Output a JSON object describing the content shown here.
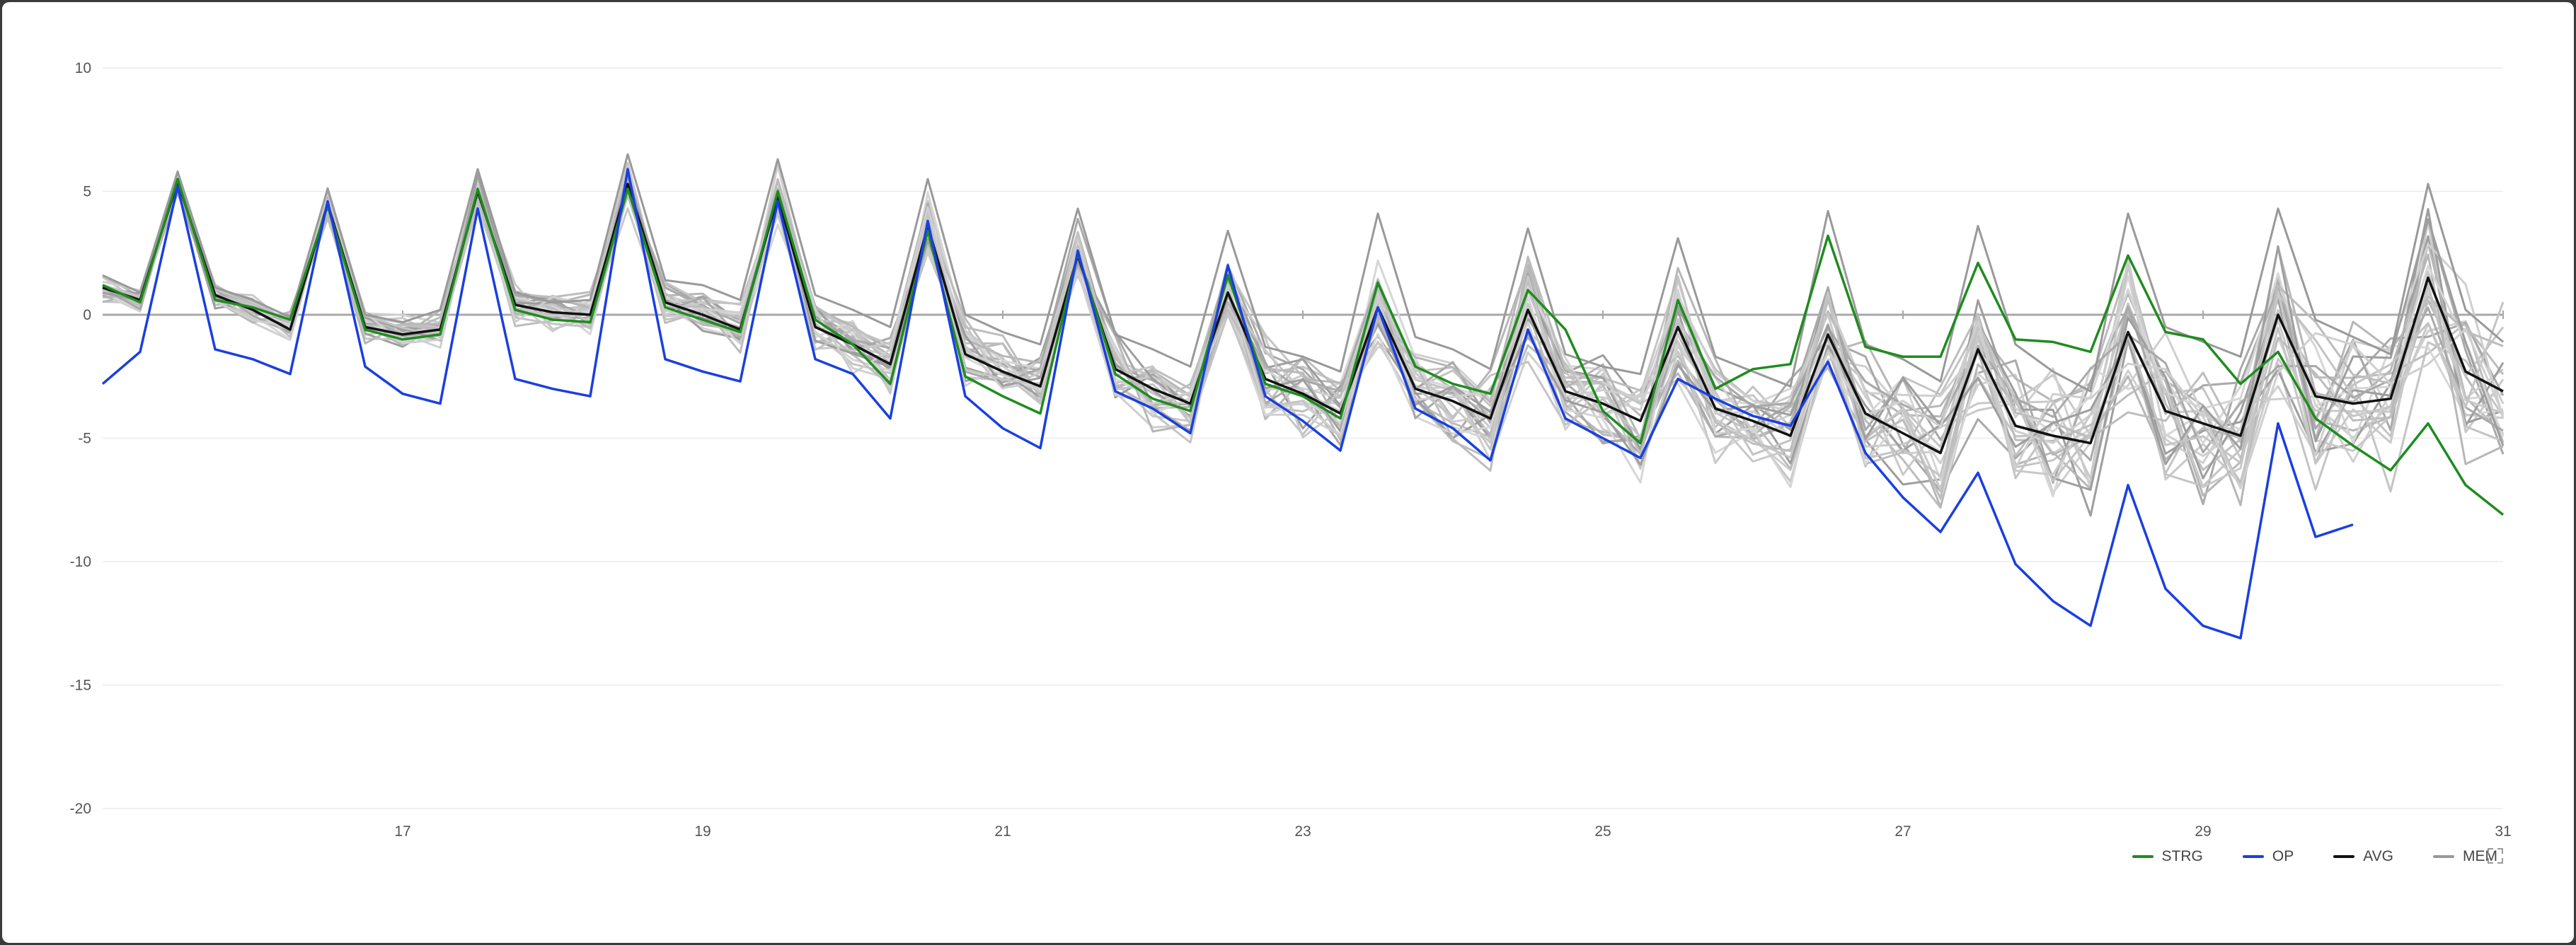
{
  "chart_data": {
    "type": "line",
    "xlabel": "",
    "ylabel": "",
    "xlim": [
      15,
      31
    ],
    "ylim": [
      -20,
      10
    ],
    "x_ticks": [
      17,
      19,
      21,
      23,
      25,
      27,
      29,
      31
    ],
    "y_ticks": [
      10,
      5,
      0,
      -5,
      -10,
      -15,
      -20
    ],
    "zero_line": true,
    "grid": "horizontal",
    "legend_position": "bottom-right",
    "x": [
      15.0,
      15.25,
      15.5,
      15.75,
      16.0,
      16.25,
      16.5,
      16.75,
      17.0,
      17.25,
      17.5,
      17.75,
      18.0,
      18.25,
      18.5,
      18.75,
      19.0,
      19.25,
      19.5,
      19.75,
      20.0,
      20.25,
      20.5,
      20.75,
      21.0,
      21.25,
      21.5,
      21.75,
      22.0,
      22.25,
      22.5,
      22.75,
      23.0,
      23.25,
      23.5,
      23.75,
      24.0,
      24.25,
      24.5,
      24.75,
      25.0,
      25.25,
      25.5,
      25.75,
      26.0,
      26.25,
      26.5,
      26.75,
      27.0,
      27.25,
      27.5,
      27.75,
      28.0,
      28.25,
      28.5,
      28.75,
      29.0,
      29.25,
      29.5,
      29.75,
      30.0,
      30.25,
      30.5,
      30.75,
      31.0
    ],
    "series": [
      {
        "name": "STRG",
        "color": "#1e8c1e",
        "values": [
          1.2,
          0.5,
          5.5,
          0.6,
          0.3,
          -0.2,
          4.4,
          -0.6,
          -1.0,
          -0.8,
          5.1,
          0.2,
          -0.2,
          -0.3,
          5.1,
          0.3,
          -0.2,
          -0.7,
          5.0,
          -0.2,
          -1.2,
          -2.8,
          3.4,
          -2.5,
          -3.3,
          -4.0,
          2.5,
          -2.4,
          -3.4,
          -3.9,
          1.6,
          -2.8,
          -3.3,
          -4.2,
          1.3,
          -2.1,
          -2.8,
          -3.2,
          1.0,
          -0.6,
          -3.9,
          -5.2,
          0.6,
          -3.0,
          -2.2,
          -2.0,
          3.2,
          -1.3,
          -1.7,
          -1.7,
          2.1,
          -1.0,
          -1.1,
          -1.5,
          2.4,
          -0.7,
          -1.0,
          -2.8,
          -1.5,
          -4.2,
          -5.3,
          -6.3,
          -4.4,
          -6.9,
          -8.1
        ]
      },
      {
        "name": "OP",
        "color": "#1a3fe0",
        "values": [
          -2.8,
          -1.5,
          5.2,
          -1.4,
          -1.8,
          -2.4,
          4.6,
          -2.1,
          -3.2,
          -3.6,
          4.3,
          -2.6,
          -3.0,
          -3.3,
          5.9,
          -1.8,
          -2.3,
          -2.7,
          4.6,
          -1.8,
          -2.4,
          -4.2,
          3.8,
          -3.3,
          -4.6,
          -5.4,
          2.6,
          -3.1,
          -3.8,
          -4.8,
          2.0,
          -3.3,
          -4.3,
          -5.5,
          0.3,
          -3.8,
          -4.6,
          -5.9,
          -0.6,
          -4.2,
          -5.0,
          -5.8,
          -2.6,
          -3.4,
          -4.1,
          -4.5,
          -1.9,
          -5.6,
          -7.4,
          -8.8,
          -6.4,
          -10.1,
          -11.6,
          -12.6,
          -6.9,
          -11.1,
          -12.6,
          -13.1,
          -4.4,
          -9.0,
          -8.5,
          null,
          null,
          null,
          null
        ]
      },
      {
        "name": "AVG",
        "color": "#111111",
        "values": [
          1.1,
          0.6,
          5.4,
          0.8,
          0.2,
          -0.6,
          4.5,
          -0.5,
          -0.8,
          -0.6,
          5.0,
          0.4,
          0.1,
          0.0,
          5.3,
          0.5,
          0.0,
          -0.6,
          4.8,
          -0.5,
          -1.2,
          -2.0,
          3.6,
          -1.6,
          -2.3,
          -2.9,
          2.4,
          -2.2,
          -3.0,
          -3.6,
          0.9,
          -2.6,
          -3.2,
          -4.0,
          0.3,
          -3.0,
          -3.5,
          -4.2,
          0.2,
          -3.1,
          -3.6,
          -4.3,
          -0.5,
          -3.8,
          -4.3,
          -4.9,
          -0.8,
          -4.0,
          -4.8,
          -5.6,
          -1.4,
          -4.5,
          -4.9,
          -5.2,
          -0.7,
          -3.9,
          -4.4,
          -4.9,
          0.0,
          -3.3,
          -3.6,
          -3.4,
          1.5,
          -2.3,
          -3.1
        ]
      },
      {
        "name": "MEM",
        "color": "#999999",
        "values": [
          1.6,
          0.9,
          5.8,
          1.1,
          0.6,
          -0.1,
          5.1,
          0.0,
          -0.3,
          0.2,
          5.9,
          0.9,
          0.5,
          0.6,
          6.5,
          1.4,
          1.2,
          0.6,
          6.3,
          0.8,
          0.2,
          -0.5,
          5.5,
          0.0,
          -0.7,
          -1.2,
          4.3,
          -0.8,
          -1.4,
          -2.1,
          3.4,
          -1.3,
          -1.7,
          -2.3,
          4.1,
          -0.9,
          -1.4,
          -2.2,
          3.5,
          -1.6,
          -2.1,
          -2.4,
          3.1,
          -1.7,
          -2.3,
          -2.9,
          4.2,
          -1.2,
          -1.8,
          -2.7,
          3.6,
          -1.2,
          -2.3,
          -3.1,
          4.1,
          -0.5,
          -1.1,
          -1.7,
          4.3,
          -0.2,
          -0.9,
          -1.6,
          5.3,
          0.2,
          -1.1
        ]
      }
    ],
    "member_series_color": "#c0c0c0"
  },
  "axis": {
    "y_labels": [
      "10",
      "5",
      "0",
      "-5",
      "-10",
      "-15",
      "-20"
    ],
    "x_labels": [
      "17",
      "19",
      "21",
      "23",
      "25",
      "27",
      "29",
      "31"
    ]
  },
  "legend": [
    {
      "label": "STRG",
      "color": "#1e8c1e"
    },
    {
      "label": "OP",
      "color": "#1a3fe0"
    },
    {
      "label": "AVG",
      "color": "#111111"
    },
    {
      "label": "MEM",
      "color": "#999999"
    }
  ],
  "controls": {
    "expand_icon": "expand-icon"
  }
}
